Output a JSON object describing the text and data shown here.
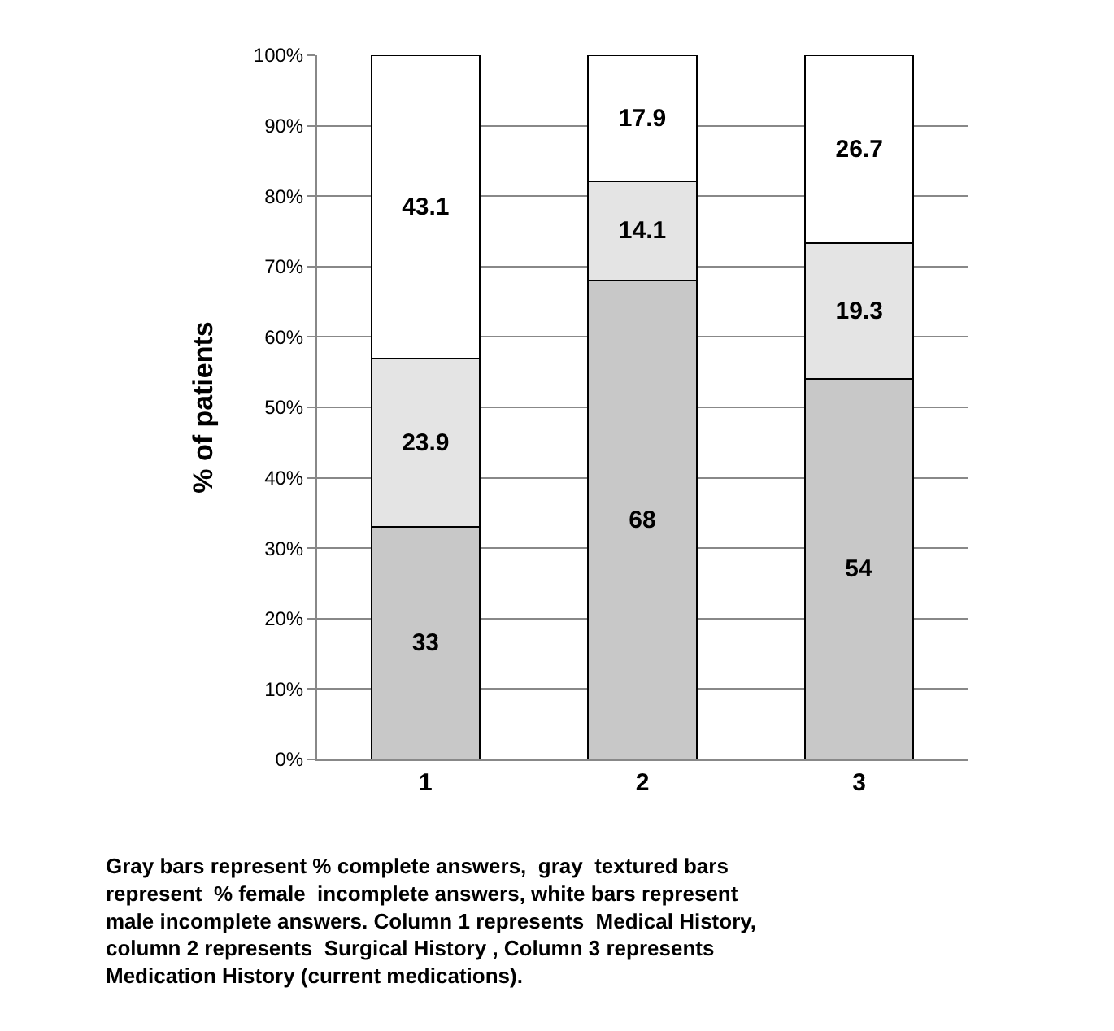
{
  "chart_data": {
    "type": "bar",
    "stacked": true,
    "ylabel": "% of patients",
    "categories": [
      "1",
      "2",
      "3"
    ],
    "series": [
      {
        "color": "#c8c8c8",
        "values": [
          33,
          68,
          54
        ]
      },
      {
        "color": "#e4e4e4",
        "values": [
          23.9,
          14.1,
          19.3
        ]
      },
      {
        "color": "#ffffff",
        "values": [
          43.1,
          17.9,
          26.7
        ]
      }
    ],
    "data_labels": true,
    "ylim": [
      0,
      100
    ],
    "yticks": [
      {
        "value": 0,
        "label": "0%"
      },
      {
        "value": 10,
        "label": "10%"
      },
      {
        "value": 20,
        "label": "20%"
      },
      {
        "value": 30,
        "label": "30%"
      },
      {
        "value": 40,
        "label": "40%"
      },
      {
        "value": 50,
        "label": "50%"
      },
      {
        "value": 60,
        "label": "60%"
      },
      {
        "value": 70,
        "label": "70%"
      },
      {
        "value": 80,
        "label": "80%"
      },
      {
        "value": 90,
        "label": "90%"
      },
      {
        "value": 100,
        "label": "100%"
      }
    ],
    "grid": "y",
    "annotations": [
      "Gray bars represent % complete answers,  gray  textured bars\nrepresent  % female  incomplete answers, white bars represent\nmale incomplete answers. Column 1 represents  Medical History,\ncolumn 2 represents  Surgical History , Column 3 represents\nMedication History (current medications)."
    ]
  }
}
